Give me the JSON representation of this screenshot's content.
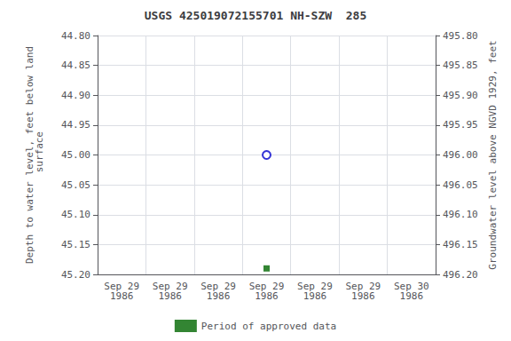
{
  "chart_data": {
    "type": "scatter",
    "title": "USGS 425019072155701 NH-SZW  285",
    "categories": [
      "Sep 29\n1986",
      "Sep 29\n1986",
      "Sep 29\n1986",
      "Sep 29\n1986",
      "Sep 29\n1986",
      "Sep 29\n1986",
      "Sep 30\n1986"
    ],
    "series": [
      {
        "color": "#0000cc",
        "marker": "circle_open",
        "values": [
          null,
          null,
          null,
          45.0,
          null,
          null,
          null
        ]
      },
      {
        "name": "Period of approved data",
        "color": "#006600",
        "marker": "square",
        "values": [
          null,
          null,
          null,
          45.19,
          null,
          null,
          null
        ]
      }
    ],
    "ylabel": "Depth to water level, feet below land\n surface",
    "y2label": "Groundwater level above NGVD 1929, feet",
    "ylim": [
      45.2,
      44.8
    ],
    "yticks": [
      {
        "value": 44.8,
        "label": "44.80"
      },
      {
        "value": 44.85,
        "label": "44.85"
      },
      {
        "value": 44.9,
        "label": "44.90"
      },
      {
        "value": 44.95,
        "label": "44.95"
      },
      {
        "value": 45.0,
        "label": "45.00"
      },
      {
        "value": 45.05,
        "label": "45.05"
      },
      {
        "value": 45.1,
        "label": "45.10"
      },
      {
        "value": 45.15,
        "label": "45.15"
      },
      {
        "value": 45.2,
        "label": "45.20"
      }
    ],
    "y2lim": [
      496.2,
      495.8
    ],
    "y2ticks": [
      {
        "value": 496.2,
        "label": "496.20"
      },
      {
        "value": 496.15,
        "label": "496.15"
      },
      {
        "value": 496.1,
        "label": "496.10"
      },
      {
        "value": 496.05,
        "label": "496.05"
      },
      {
        "value": 496.0,
        "label": "496.00"
      },
      {
        "value": 495.95,
        "label": "495.95"
      },
      {
        "value": 495.9,
        "label": "495.90"
      },
      {
        "value": 495.85,
        "label": "495.85"
      },
      {
        "value": 495.8,
        "label": "495.80"
      }
    ],
    "grid": true,
    "legend": "bottom"
  }
}
